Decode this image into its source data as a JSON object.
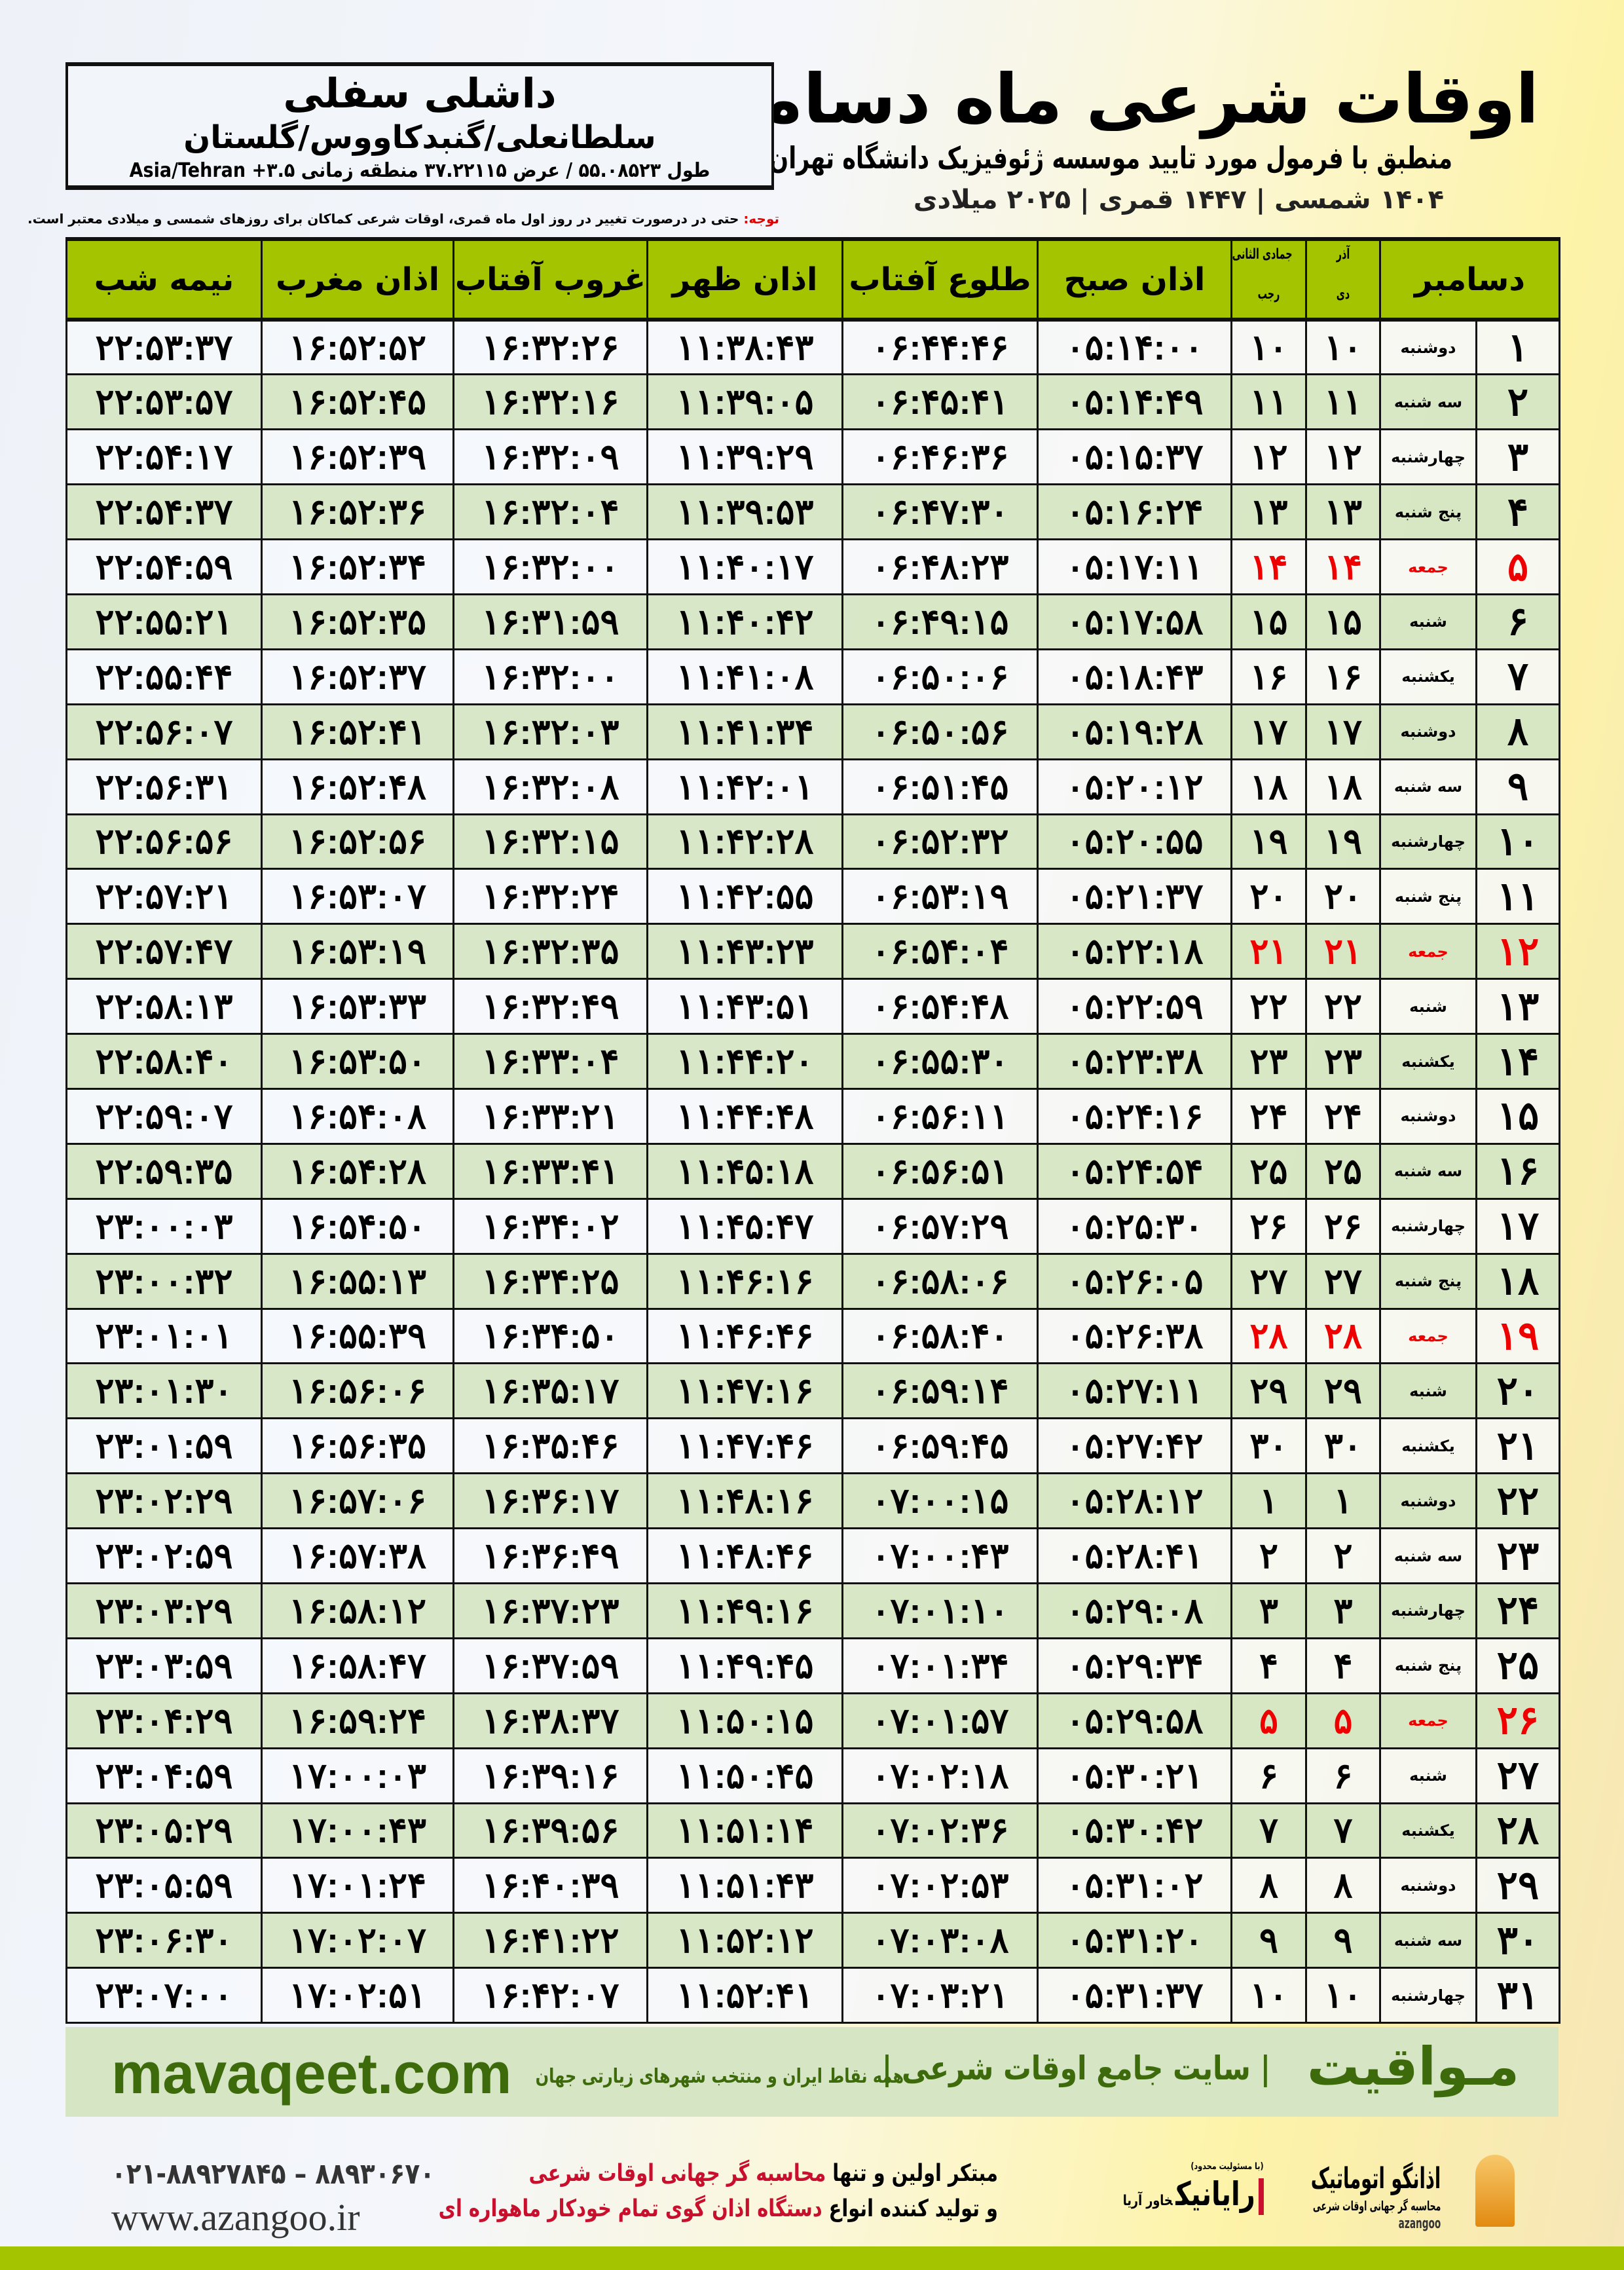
{
  "header": {
    "title": "اوقات شرعی ماه دسامبر",
    "subtitle": "منطبق با فرمول مورد تایید موسسه ژئوفیزیک دانشگاه تهران",
    "years": "۱۴۰۴ شمسی | ۱۴۴۷ قمری | ۲۰۲۵ میلادی"
  },
  "location": {
    "name": "داشلی سفلی",
    "region": "سلطانعلی/گنبدکاووس/گلستان",
    "coords": "طول ۵۵.۰۸۵۲۳ / عرض ۳۷.۲۲۱۱۵ منطقه زمانی ۳.۵+ Asia/Tehran"
  },
  "note": {
    "label": "توجه:",
    "text": " حتی در درصورت تغییر در روز اول ماه قمری، اوقات شرعی کماکان برای روزهای شمسی و میلادی معتبر است."
  },
  "table": {
    "headers": {
      "midnight": "نیمه شب",
      "maghrib": "اذان مغرب",
      "sunset": "غروب آفتاب",
      "dhuhr": "اذان ظهر",
      "sunrise": "طلوع آفتاب",
      "fajr": "اذان صبح",
      "hijri_top": "جمادی الثانی",
      "hijri_bottom": "رجب",
      "shamsi_top": "آذر",
      "shamsi_bottom": "دی",
      "month": "دسامبر"
    },
    "rows": [
      [
        "۱",
        "دوشنبه",
        "۱۰",
        "۱۰",
        "۰۵:۱۴:۰۰",
        "۰۶:۴۴:۴۶",
        "۱۱:۳۸:۴۳",
        "۱۶:۳۲:۲۶",
        "۱۶:۵۲:۵۲",
        "۲۲:۵۳:۳۷"
      ],
      [
        "۲",
        "سه شنبه",
        "۱۱",
        "۱۱",
        "۰۵:۱۴:۴۹",
        "۰۶:۴۵:۴۱",
        "۱۱:۳۹:۰۵",
        "۱۶:۳۲:۱۶",
        "۱۶:۵۲:۴۵",
        "۲۲:۵۳:۵۷"
      ],
      [
        "۳",
        "چهارشنبه",
        "۱۲",
        "۱۲",
        "۰۵:۱۵:۳۷",
        "۰۶:۴۶:۳۶",
        "۱۱:۳۹:۲۹",
        "۱۶:۳۲:۰۹",
        "۱۶:۵۲:۳۹",
        "۲۲:۵۴:۱۷"
      ],
      [
        "۴",
        "پنج شنبه",
        "۱۳",
        "۱۳",
        "۰۵:۱۶:۲۴",
        "۰۶:۴۷:۳۰",
        "۱۱:۳۹:۵۳",
        "۱۶:۳۲:۰۴",
        "۱۶:۵۲:۳۶",
        "۲۲:۵۴:۳۷"
      ],
      [
        "۵",
        "جمعه",
        "۱۴",
        "۱۴",
        "۰۵:۱۷:۱۱",
        "۰۶:۴۸:۲۳",
        "۱۱:۴۰:۱۷",
        "۱۶:۳۲:۰۰",
        "۱۶:۵۲:۳۴",
        "۲۲:۵۴:۵۹"
      ],
      [
        "۶",
        "شنبه",
        "۱۵",
        "۱۵",
        "۰۵:۱۷:۵۸",
        "۰۶:۴۹:۱۵",
        "۱۱:۴۰:۴۲",
        "۱۶:۳۱:۵۹",
        "۱۶:۵۲:۳۵",
        "۲۲:۵۵:۲۱"
      ],
      [
        "۷",
        "یکشنبه",
        "۱۶",
        "۱۶",
        "۰۵:۱۸:۴۳",
        "۰۶:۵۰:۰۶",
        "۱۱:۴۱:۰۸",
        "۱۶:۳۲:۰۰",
        "۱۶:۵۲:۳۷",
        "۲۲:۵۵:۴۴"
      ],
      [
        "۸",
        "دوشنبه",
        "۱۷",
        "۱۷",
        "۰۵:۱۹:۲۸",
        "۰۶:۵۰:۵۶",
        "۱۱:۴۱:۳۴",
        "۱۶:۳۲:۰۳",
        "۱۶:۵۲:۴۱",
        "۲۲:۵۶:۰۷"
      ],
      [
        "۹",
        "سه شنبه",
        "۱۸",
        "۱۸",
        "۰۵:۲۰:۱۲",
        "۰۶:۵۱:۴۵",
        "۱۱:۴۲:۰۱",
        "۱۶:۳۲:۰۸",
        "۱۶:۵۲:۴۸",
        "۲۲:۵۶:۳۱"
      ],
      [
        "۱۰",
        "چهارشنبه",
        "۱۹",
        "۱۹",
        "۰۵:۲۰:۵۵",
        "۰۶:۵۲:۳۲",
        "۱۱:۴۲:۲۸",
        "۱۶:۳۲:۱۵",
        "۱۶:۵۲:۵۶",
        "۲۲:۵۶:۵۶"
      ],
      [
        "۱۱",
        "پنج شنبه",
        "۲۰",
        "۲۰",
        "۰۵:۲۱:۳۷",
        "۰۶:۵۳:۱۹",
        "۱۱:۴۲:۵۵",
        "۱۶:۳۲:۲۴",
        "۱۶:۵۳:۰۷",
        "۲۲:۵۷:۲۱"
      ],
      [
        "۱۲",
        "جمعه",
        "۲۱",
        "۲۱",
        "۰۵:۲۲:۱۸",
        "۰۶:۵۴:۰۴",
        "۱۱:۴۳:۲۳",
        "۱۶:۳۲:۳۵",
        "۱۶:۵۳:۱۹",
        "۲۲:۵۷:۴۷"
      ],
      [
        "۱۳",
        "شنبه",
        "۲۲",
        "۲۲",
        "۰۵:۲۲:۵۹",
        "۰۶:۵۴:۴۸",
        "۱۱:۴۳:۵۱",
        "۱۶:۳۲:۴۹",
        "۱۶:۵۳:۳۳",
        "۲۲:۵۸:۱۳"
      ],
      [
        "۱۴",
        "یکشنبه",
        "۲۳",
        "۲۳",
        "۰۵:۲۳:۳۸",
        "۰۶:۵۵:۳۰",
        "۱۱:۴۴:۲۰",
        "۱۶:۳۳:۰۴",
        "۱۶:۵۳:۵۰",
        "۲۲:۵۸:۴۰"
      ],
      [
        "۱۵",
        "دوشنبه",
        "۲۴",
        "۲۴",
        "۰۵:۲۴:۱۶",
        "۰۶:۵۶:۱۱",
        "۱۱:۴۴:۴۸",
        "۱۶:۳۳:۲۱",
        "۱۶:۵۴:۰۸",
        "۲۲:۵۹:۰۷"
      ],
      [
        "۱۶",
        "سه شنبه",
        "۲۵",
        "۲۵",
        "۰۵:۲۴:۵۴",
        "۰۶:۵۶:۵۱",
        "۱۱:۴۵:۱۸",
        "۱۶:۳۳:۴۱",
        "۱۶:۵۴:۲۸",
        "۲۲:۵۹:۳۵"
      ],
      [
        "۱۷",
        "چهارشنبه",
        "۲۶",
        "۲۶",
        "۰۵:۲۵:۳۰",
        "۰۶:۵۷:۲۹",
        "۱۱:۴۵:۴۷",
        "۱۶:۳۴:۰۲",
        "۱۶:۵۴:۵۰",
        "۲۳:۰۰:۰۳"
      ],
      [
        "۱۸",
        "پنج شنبه",
        "۲۷",
        "۲۷",
        "۰۵:۲۶:۰۵",
        "۰۶:۵۸:۰۶",
        "۱۱:۴۶:۱۶",
        "۱۶:۳۴:۲۵",
        "۱۶:۵۵:۱۳",
        "۲۳:۰۰:۳۲"
      ],
      [
        "۱۹",
        "جمعه",
        "۲۸",
        "۲۸",
        "۰۵:۲۶:۳۸",
        "۰۶:۵۸:۴۰",
        "۱۱:۴۶:۴۶",
        "۱۶:۳۴:۵۰",
        "۱۶:۵۵:۳۹",
        "۲۳:۰۱:۰۱"
      ],
      [
        "۲۰",
        "شنبه",
        "۲۹",
        "۲۹",
        "۰۵:۲۷:۱۱",
        "۰۶:۵۹:۱۴",
        "۱۱:۴۷:۱۶",
        "۱۶:۳۵:۱۷",
        "۱۶:۵۶:۰۶",
        "۲۳:۰۱:۳۰"
      ],
      [
        "۲۱",
        "یکشنبه",
        "۳۰",
        "۳۰",
        "۰۵:۲۷:۴۲",
        "۰۶:۵۹:۴۵",
        "۱۱:۴۷:۴۶",
        "۱۶:۳۵:۴۶",
        "۱۶:۵۶:۳۵",
        "۲۳:۰۱:۵۹"
      ],
      [
        "۲۲",
        "دوشنبه",
        "۱",
        "۱",
        "۰۵:۲۸:۱۲",
        "۰۷:۰۰:۱۵",
        "۱۱:۴۸:۱۶",
        "۱۶:۳۶:۱۷",
        "۱۶:۵۷:۰۶",
        "۲۳:۰۲:۲۹"
      ],
      [
        "۲۳",
        "سه شنبه",
        "۲",
        "۲",
        "۰۵:۲۸:۴۱",
        "۰۷:۰۰:۴۳",
        "۱۱:۴۸:۴۶",
        "۱۶:۳۶:۴۹",
        "۱۶:۵۷:۳۸",
        "۲۳:۰۲:۵۹"
      ],
      [
        "۲۴",
        "چهارشنبه",
        "۳",
        "۳",
        "۰۵:۲۹:۰۸",
        "۰۷:۰۱:۱۰",
        "۱۱:۴۹:۱۶",
        "۱۶:۳۷:۲۳",
        "۱۶:۵۸:۱۲",
        "۲۳:۰۳:۲۹"
      ],
      [
        "۲۵",
        "پنج شنبه",
        "۴",
        "۴",
        "۰۵:۲۹:۳۴",
        "۰۷:۰۱:۳۴",
        "۱۱:۴۹:۴۵",
        "۱۶:۳۷:۵۹",
        "۱۶:۵۸:۴۷",
        "۲۳:۰۳:۵۹"
      ],
      [
        "۲۶",
        "جمعه",
        "۵",
        "۵",
        "۰۵:۲۹:۵۸",
        "۰۷:۰۱:۵۷",
        "۱۱:۵۰:۱۵",
        "۱۶:۳۸:۳۷",
        "۱۶:۵۹:۲۴",
        "۲۳:۰۴:۲۹"
      ],
      [
        "۲۷",
        "شنبه",
        "۶",
        "۶",
        "۰۵:۳۰:۲۱",
        "۰۷:۰۲:۱۸",
        "۱۱:۵۰:۴۵",
        "۱۶:۳۹:۱۶",
        "۱۷:۰۰:۰۳",
        "۲۳:۰۴:۵۹"
      ],
      [
        "۲۸",
        "یکشنبه",
        "۷",
        "۷",
        "۰۵:۳۰:۴۲",
        "۰۷:۰۲:۳۶",
        "۱۱:۵۱:۱۴",
        "۱۶:۳۹:۵۶",
        "۱۷:۰۰:۴۳",
        "۲۳:۰۵:۲۹"
      ],
      [
        "۲۹",
        "دوشنبه",
        "۸",
        "۸",
        "۰۵:۳۱:۰۲",
        "۰۷:۰۲:۵۳",
        "۱۱:۵۱:۴۳",
        "۱۶:۴۰:۳۹",
        "۱۷:۰۱:۲۴",
        "۲۳:۰۵:۵۹"
      ],
      [
        "۳۰",
        "سه شنبه",
        "۹",
        "۹",
        "۰۵:۳۱:۲۰",
        "۰۷:۰۳:۰۸",
        "۱۱:۵۲:۱۲",
        "۱۶:۴۱:۲۲",
        "۱۷:۰۲:۰۷",
        "۲۳:۰۶:۳۰"
      ],
      [
        "۳۱",
        "چهارشنبه",
        "۱۰",
        "۱۰",
        "۰۵:۳۱:۳۷",
        "۰۷:۰۳:۲۱",
        "۱۱:۵۲:۴۱",
        "۱۶:۴۲:۰۷",
        "۱۷:۰۲:۵۱",
        "۲۳:۰۷:۰۰"
      ]
    ],
    "friday_label": "جمعه"
  },
  "banner": {
    "site": "mavaqeet.com",
    "brand": "مـواقیت",
    "tagline": "| سایت جامع اوقات شرعی |",
    "sub": "همه نقاط ایران و منتخب شهرهای زیارتی جهان"
  },
  "footer": {
    "phone": "۰۲۱-۸۸۹۲۷۸۴۵ – ۸۸۹۳۰۶۷۰",
    "website": "www.azangoo.ir",
    "slogan1_a": "مبتکر اولین و تنها ",
    "slogan1_b": "محاسبه گر جهانی اوقات شرعی",
    "slogan2_a": "و تولید کننده انواع ",
    "slogan2_b": "دستگاه اذان گوی تمام خودکار ماهواره ای",
    "logo_rayanik": "رایانیک",
    "logo_rayanik_sub": "خاور آریا",
    "logo_rayanik_note": "(با مسئولیت محدود)",
    "logo_azangoo": "اذانگو اتوماتیک",
    "logo_azangoo_sub": "محاسبه گر جهانی اوقات شرعی",
    "logo_azangoo_en": "azangoo"
  },
  "colors": {
    "header_green": "#a4c400",
    "row_alt": "#d6e6c4",
    "friday": "#e00000",
    "brand_green": "#3d6b0c"
  }
}
